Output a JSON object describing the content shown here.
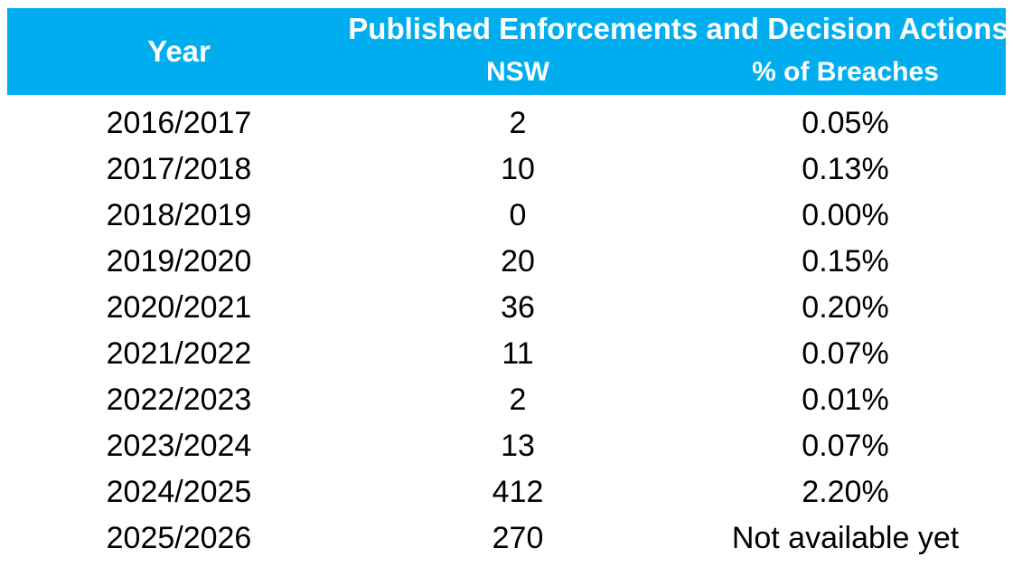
{
  "colors": {
    "header_bg": "#00AEEF",
    "header_text": "#FFFFFF",
    "body_text": "#000000",
    "page_bg": "#FFFFFF"
  },
  "table": {
    "header": {
      "year_label": "Year",
      "group_label": "Published Enforcements and Decision Actions",
      "nsw_label": "NSW",
      "pct_label": "% of Breaches"
    },
    "rows": [
      {
        "year": "2016/2017",
        "nsw": "2",
        "pct": "0.05%"
      },
      {
        "year": "2017/2018",
        "nsw": "10",
        "pct": "0.13%"
      },
      {
        "year": "2018/2019",
        "nsw": "0",
        "pct": "0.00%"
      },
      {
        "year": "2019/2020",
        "nsw": "20",
        "pct": "0.15%"
      },
      {
        "year": "2020/2021",
        "nsw": "36",
        "pct": "0.20%"
      },
      {
        "year": "2021/2022",
        "nsw": "11",
        "pct": "0.07%"
      },
      {
        "year": "2022/2023",
        "nsw": "2",
        "pct": "0.01%"
      },
      {
        "year": "2023/2024",
        "nsw": "13",
        "pct": "0.07%"
      },
      {
        "year": "2024/2025",
        "nsw": "412",
        "pct": "2.20%"
      },
      {
        "year": "2025/2026",
        "nsw": "270",
        "pct": "Not available yet"
      }
    ]
  },
  "chart_data": {
    "type": "table",
    "title": "Published Enforcements and Decision Actions",
    "columns": [
      "Year",
      "NSW",
      "% of Breaches"
    ],
    "categories": [
      "2016/2017",
      "2017/2018",
      "2018/2019",
      "2019/2020",
      "2020/2021",
      "2021/2022",
      "2022/2023",
      "2023/2024",
      "2024/2025",
      "2025/2026"
    ],
    "series": [
      {
        "name": "NSW",
        "values": [
          2,
          10,
          0,
          20,
          36,
          11,
          2,
          13,
          412,
          270
        ]
      },
      {
        "name": "% of Breaches",
        "values": [
          "0.05%",
          "0.13%",
          "0.00%",
          "0.15%",
          "0.20%",
          "0.07%",
          "0.01%",
          "0.07%",
          "2.20%",
          "Not available yet"
        ]
      }
    ],
    "layout": {
      "header_band": true,
      "gridlines": false,
      "legend": "none"
    }
  }
}
